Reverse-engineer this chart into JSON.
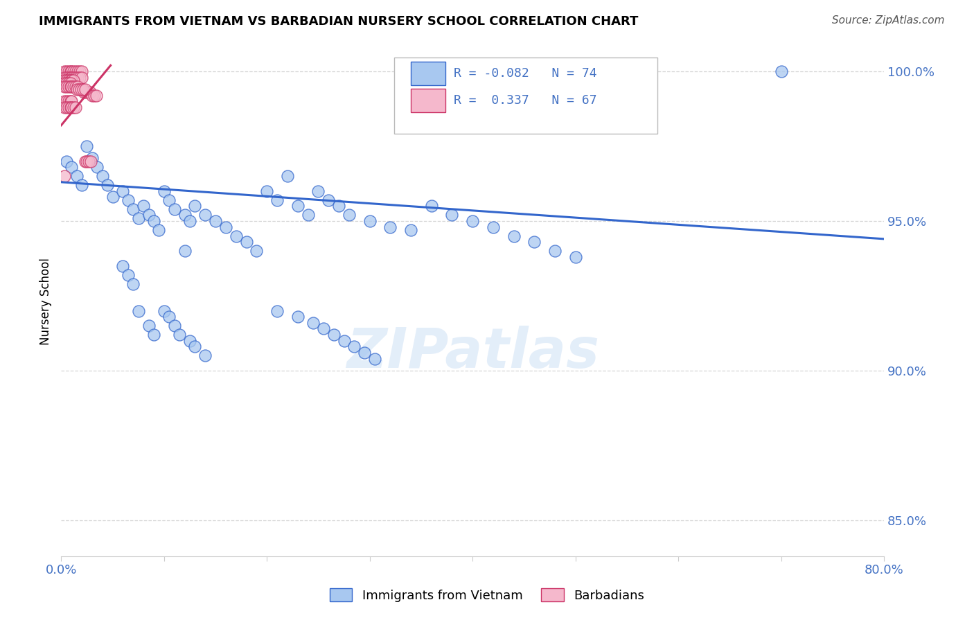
{
  "title": "IMMIGRANTS FROM VIETNAM VS BARBADIAN NURSERY SCHOOL CORRELATION CHART",
  "source": "Source: ZipAtlas.com",
  "ylabel": "Nursery School",
  "R1": -0.082,
  "N1": 74,
  "R2": 0.337,
  "N2": 67,
  "legend_series1_label": "Immigrants from Vietnam",
  "legend_series2_label": "Barbadians",
  "xlim": [
    0.0,
    0.8
  ],
  "ylim": [
    0.838,
    1.008
  ],
  "yticks": [
    0.85,
    0.9,
    0.95,
    1.0
  ],
  "ytick_labels": [
    "85.0%",
    "90.0%",
    "95.0%",
    "100.0%"
  ],
  "xticks": [
    0.0,
    0.1,
    0.2,
    0.3,
    0.4,
    0.5,
    0.6,
    0.7,
    0.8
  ],
  "xtick_labels": [
    "0.0%",
    "",
    "",
    "",
    "",
    "",
    "",
    "",
    "80.0%"
  ],
  "blue_color": "#a8c8f0",
  "pink_color": "#f5b8cc",
  "blue_line_color": "#3366cc",
  "pink_line_color": "#cc3366",
  "watermark": "ZIPatlas",
  "blue_x": [
    0.005,
    0.01,
    0.015,
    0.02,
    0.025,
    0.03,
    0.035,
    0.04,
    0.045,
    0.05,
    0.06,
    0.065,
    0.07,
    0.075,
    0.08,
    0.085,
    0.09,
    0.095,
    0.1,
    0.105,
    0.11,
    0.12,
    0.125,
    0.13,
    0.14,
    0.15,
    0.16,
    0.17,
    0.18,
    0.19,
    0.2,
    0.21,
    0.22,
    0.23,
    0.24,
    0.25,
    0.26,
    0.27,
    0.28,
    0.3,
    0.32,
    0.34,
    0.36,
    0.38,
    0.4,
    0.42,
    0.44,
    0.46,
    0.48,
    0.5,
    0.125,
    0.13,
    0.14,
    0.06,
    0.065,
    0.07,
    0.075,
    0.085,
    0.09,
    0.1,
    0.105,
    0.11,
    0.115,
    0.12,
    0.7,
    0.21,
    0.23,
    0.245,
    0.255,
    0.265,
    0.275,
    0.285,
    0.295,
    0.305
  ],
  "blue_y": [
    0.97,
    0.968,
    0.965,
    0.962,
    0.975,
    0.971,
    0.968,
    0.965,
    0.962,
    0.958,
    0.96,
    0.957,
    0.954,
    0.951,
    0.955,
    0.952,
    0.95,
    0.947,
    0.96,
    0.957,
    0.954,
    0.952,
    0.95,
    0.955,
    0.952,
    0.95,
    0.948,
    0.945,
    0.943,
    0.94,
    0.96,
    0.957,
    0.965,
    0.955,
    0.952,
    0.96,
    0.957,
    0.955,
    0.952,
    0.95,
    0.948,
    0.947,
    0.955,
    0.952,
    0.95,
    0.948,
    0.945,
    0.943,
    0.94,
    0.938,
    0.91,
    0.908,
    0.905,
    0.935,
    0.932,
    0.929,
    0.92,
    0.915,
    0.912,
    0.92,
    0.918,
    0.915,
    0.912,
    0.94,
    1.0,
    0.92,
    0.918,
    0.916,
    0.914,
    0.912,
    0.91,
    0.908,
    0.906,
    0.904
  ],
  "pink_x": [
    0.003,
    0.005,
    0.007,
    0.009,
    0.01,
    0.012,
    0.014,
    0.016,
    0.018,
    0.02,
    0.003,
    0.005,
    0.007,
    0.009,
    0.01,
    0.012,
    0.014,
    0.016,
    0.018,
    0.02,
    0.003,
    0.005,
    0.007,
    0.009,
    0.01,
    0.012,
    0.003,
    0.005,
    0.007,
    0.009,
    0.003,
    0.005,
    0.007,
    0.009,
    0.01,
    0.012,
    0.014,
    0.016,
    0.022,
    0.024,
    0.026,
    0.028,
    0.03,
    0.032,
    0.034,
    0.015,
    0.017,
    0.019,
    0.021,
    0.023,
    0.003,
    0.005,
    0.007,
    0.009,
    0.01,
    0.003,
    0.005,
    0.007,
    0.009,
    0.01,
    0.012,
    0.014,
    0.003,
    0.023,
    0.025,
    0.027,
    0.029
  ],
  "pink_y": [
    1.0,
    1.0,
    1.0,
    1.0,
    1.0,
    1.0,
    1.0,
    1.0,
    1.0,
    1.0,
    0.998,
    0.998,
    0.998,
    0.998,
    0.998,
    0.998,
    0.998,
    0.998,
    0.998,
    0.998,
    0.997,
    0.997,
    0.997,
    0.997,
    0.997,
    0.997,
    0.996,
    0.996,
    0.996,
    0.996,
    0.995,
    0.995,
    0.995,
    0.995,
    0.995,
    0.995,
    0.995,
    0.995,
    0.993,
    0.993,
    0.993,
    0.993,
    0.992,
    0.992,
    0.992,
    0.994,
    0.994,
    0.994,
    0.994,
    0.994,
    0.99,
    0.99,
    0.99,
    0.99,
    0.99,
    0.988,
    0.988,
    0.988,
    0.988,
    0.988,
    0.988,
    0.988,
    0.965,
    0.97,
    0.97,
    0.97,
    0.97
  ],
  "blue_trend_x": [
    0.0,
    0.8
  ],
  "blue_trend_y": [
    0.963,
    0.944
  ],
  "pink_trend_x": [
    0.0,
    0.048
  ],
  "pink_trend_y": [
    0.982,
    1.002
  ]
}
